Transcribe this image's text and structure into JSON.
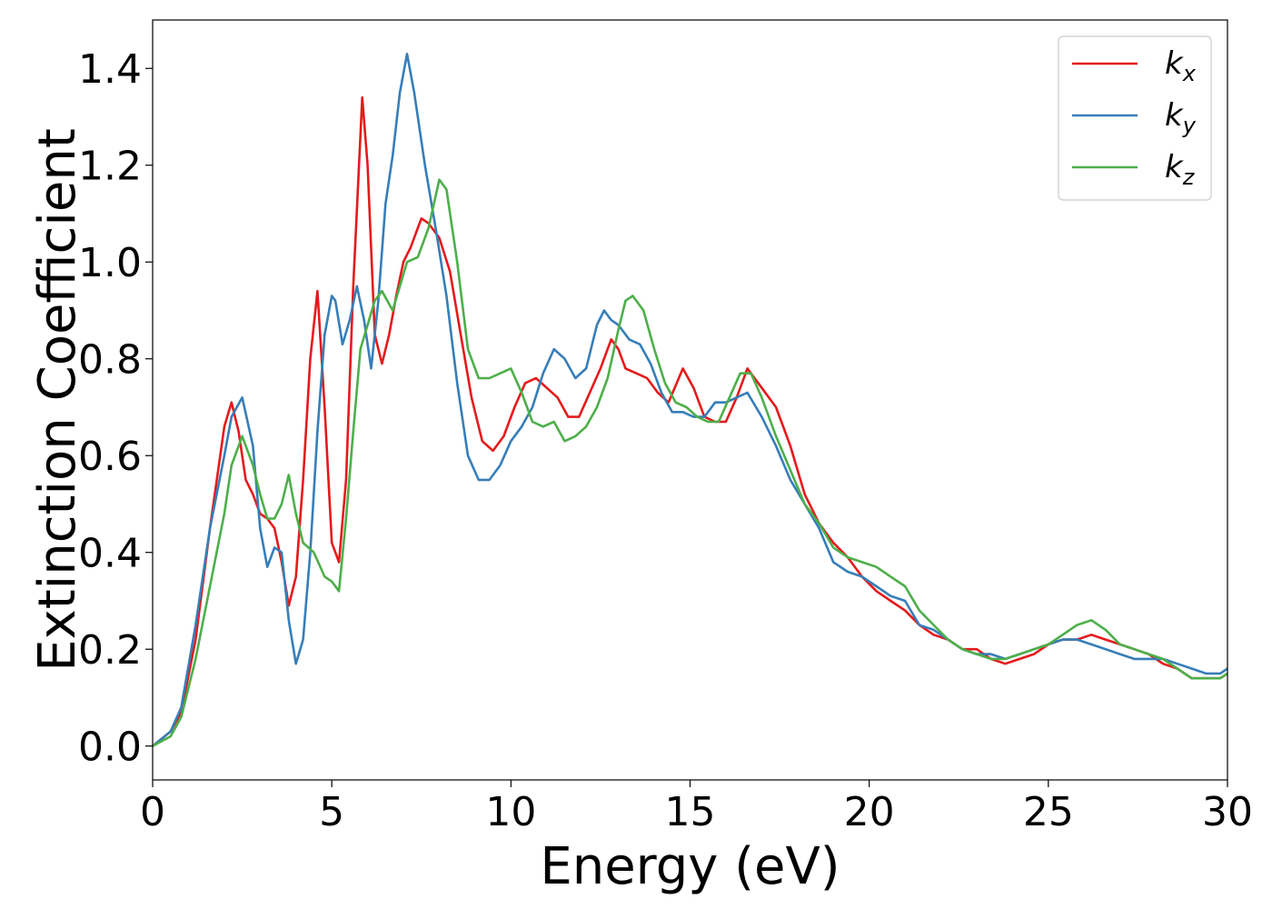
{
  "chart_data": {
    "type": "line",
    "xlabel": "Energy (eV)",
    "ylabel": "Extinction Coefficient",
    "xlim": [
      0,
      30
    ],
    "ylim": [
      -0.07,
      1.5
    ],
    "xticks": [
      0,
      5,
      10,
      15,
      20,
      25,
      30
    ],
    "xtick_labels": [
      "0",
      "5",
      "10",
      "15",
      "20",
      "25",
      "30"
    ],
    "yticks": [
      0.0,
      0.2,
      0.4,
      0.6,
      0.8,
      1.0,
      1.2,
      1.4
    ],
    "ytick_labels": [
      "0.0",
      "0.2",
      "0.4",
      "0.6",
      "0.8",
      "1.0",
      "1.2",
      "1.4"
    ],
    "grid": false,
    "legend_position": "top-right",
    "series": [
      {
        "name": "k",
        "subscript": "x",
        "color": "#e41a1c",
        "x": [
          0,
          0.5,
          0.8,
          1.2,
          1.6,
          2.0,
          2.2,
          2.4,
          2.6,
          2.8,
          3.0,
          3.2,
          3.4,
          3.6,
          3.8,
          4.0,
          4.2,
          4.4,
          4.6,
          4.8,
          5.0,
          5.2,
          5.4,
          5.6,
          5.85,
          6.0,
          6.2,
          6.4,
          6.6,
          6.8,
          7.0,
          7.2,
          7.5,
          7.7,
          8.0,
          8.3,
          8.6,
          8.9,
          9.2,
          9.5,
          9.8,
          10.1,
          10.4,
          10.7,
          11.0,
          11.3,
          11.6,
          11.9,
          12.2,
          12.5,
          12.8,
          13.0,
          13.2,
          13.5,
          13.8,
          14.1,
          14.4,
          14.8,
          15.1,
          15.4,
          15.7,
          16.0,
          16.3,
          16.6,
          17.0,
          17.4,
          17.8,
          18.2,
          18.6,
          19.0,
          19.4,
          19.8,
          20.2,
          20.6,
          21.0,
          21.4,
          21.8,
          22.2,
          22.6,
          23.0,
          23.4,
          23.8,
          24.2,
          24.6,
          25.0,
          25.4,
          25.8,
          26.2,
          26.6,
          27.0,
          27.4,
          27.8,
          28.2,
          28.6,
          29.0,
          29.4,
          29.8,
          30.0
        ],
        "y": [
          0.0,
          0.03,
          0.07,
          0.22,
          0.45,
          0.66,
          0.71,
          0.65,
          0.55,
          0.52,
          0.48,
          0.47,
          0.45,
          0.38,
          0.29,
          0.35,
          0.55,
          0.8,
          0.94,
          0.7,
          0.42,
          0.38,
          0.55,
          0.95,
          1.34,
          1.2,
          0.85,
          0.79,
          0.85,
          0.93,
          1.0,
          1.03,
          1.09,
          1.08,
          1.05,
          0.98,
          0.85,
          0.72,
          0.63,
          0.61,
          0.64,
          0.7,
          0.75,
          0.76,
          0.74,
          0.72,
          0.68,
          0.68,
          0.73,
          0.78,
          0.84,
          0.82,
          0.78,
          0.77,
          0.76,
          0.73,
          0.71,
          0.78,
          0.74,
          0.68,
          0.67,
          0.67,
          0.72,
          0.78,
          0.74,
          0.7,
          0.62,
          0.52,
          0.46,
          0.42,
          0.39,
          0.35,
          0.32,
          0.3,
          0.28,
          0.25,
          0.23,
          0.22,
          0.2,
          0.2,
          0.18,
          0.17,
          0.18,
          0.19,
          0.21,
          0.22,
          0.22,
          0.23,
          0.22,
          0.21,
          0.2,
          0.19,
          0.17,
          0.16,
          0.14,
          0.14,
          0.14,
          0.15
        ]
      },
      {
        "name": "k",
        "subscript": "y",
        "color": "#377eb8",
        "x": [
          0,
          0.5,
          0.8,
          1.2,
          1.6,
          2.0,
          2.2,
          2.5,
          2.8,
          3.0,
          3.2,
          3.4,
          3.6,
          3.8,
          4.0,
          4.2,
          4.4,
          4.6,
          4.8,
          5.0,
          5.1,
          5.3,
          5.5,
          5.7,
          5.9,
          6.1,
          6.3,
          6.5,
          6.7,
          6.9,
          7.1,
          7.3,
          7.6,
          7.9,
          8.2,
          8.5,
          8.8,
          9.1,
          9.4,
          9.7,
          10.0,
          10.3,
          10.6,
          10.9,
          11.2,
          11.5,
          11.8,
          12.1,
          12.4,
          12.6,
          12.8,
          13.0,
          13.3,
          13.6,
          13.9,
          14.2,
          14.5,
          14.8,
          15.1,
          15.4,
          15.7,
          16.0,
          16.3,
          16.6,
          17.0,
          17.4,
          17.8,
          18.2,
          18.6,
          19.0,
          19.4,
          19.8,
          20.2,
          20.6,
          21.0,
          21.4,
          21.8,
          22.2,
          22.6,
          23.0,
          23.4,
          23.8,
          24.2,
          24.6,
          25.0,
          25.4,
          25.8,
          26.2,
          26.6,
          27.0,
          27.4,
          27.8,
          28.2,
          28.6,
          29.0,
          29.4,
          29.8,
          30.0
        ],
        "y": [
          0.0,
          0.03,
          0.08,
          0.25,
          0.45,
          0.6,
          0.68,
          0.72,
          0.62,
          0.45,
          0.37,
          0.41,
          0.4,
          0.26,
          0.17,
          0.22,
          0.4,
          0.65,
          0.85,
          0.93,
          0.92,
          0.83,
          0.88,
          0.95,
          0.88,
          0.78,
          0.92,
          1.12,
          1.22,
          1.35,
          1.43,
          1.35,
          1.2,
          1.07,
          0.93,
          0.75,
          0.6,
          0.55,
          0.55,
          0.58,
          0.63,
          0.66,
          0.7,
          0.77,
          0.82,
          0.8,
          0.76,
          0.78,
          0.87,
          0.9,
          0.88,
          0.87,
          0.84,
          0.83,
          0.79,
          0.73,
          0.69,
          0.69,
          0.68,
          0.68,
          0.71,
          0.71,
          0.72,
          0.73,
          0.68,
          0.62,
          0.55,
          0.5,
          0.45,
          0.38,
          0.36,
          0.35,
          0.33,
          0.31,
          0.3,
          0.25,
          0.24,
          0.22,
          0.2,
          0.19,
          0.19,
          0.18,
          0.19,
          0.2,
          0.21,
          0.22,
          0.22,
          0.21,
          0.2,
          0.19,
          0.18,
          0.18,
          0.18,
          0.17,
          0.16,
          0.15,
          0.15,
          0.16
        ]
      },
      {
        "name": "k",
        "subscript": "z",
        "color": "#4daf4a",
        "x": [
          0,
          0.5,
          0.8,
          1.2,
          1.6,
          2.0,
          2.2,
          2.5,
          2.8,
          3.0,
          3.2,
          3.4,
          3.6,
          3.8,
          4.0,
          4.2,
          4.5,
          4.8,
          5.0,
          5.2,
          5.4,
          5.6,
          5.8,
          6.0,
          6.2,
          6.4,
          6.7,
          6.9,
          7.1,
          7.4,
          7.7,
          8.0,
          8.2,
          8.5,
          8.8,
          9.1,
          9.4,
          9.7,
          10.0,
          10.3,
          10.6,
          10.9,
          11.2,
          11.5,
          11.8,
          12.1,
          12.4,
          12.7,
          13.0,
          13.2,
          13.4,
          13.7,
          14.0,
          14.3,
          14.6,
          14.9,
          15.2,
          15.5,
          15.8,
          16.1,
          16.4,
          16.7,
          17.0,
          17.4,
          17.8,
          18.2,
          18.6,
          19.0,
          19.4,
          19.8,
          20.2,
          20.6,
          21.0,
          21.4,
          21.8,
          22.2,
          22.6,
          23.0,
          23.4,
          23.8,
          24.2,
          24.6,
          25.0,
          25.4,
          25.8,
          26.2,
          26.6,
          27.0,
          27.4,
          27.8,
          28.2,
          28.6,
          29.0,
          29.4,
          29.8,
          30.0
        ],
        "y": [
          0.0,
          0.02,
          0.06,
          0.18,
          0.33,
          0.48,
          0.58,
          0.64,
          0.58,
          0.52,
          0.47,
          0.47,
          0.5,
          0.56,
          0.48,
          0.42,
          0.4,
          0.35,
          0.34,
          0.32,
          0.47,
          0.65,
          0.82,
          0.87,
          0.92,
          0.94,
          0.9,
          0.95,
          1.0,
          1.01,
          1.07,
          1.17,
          1.15,
          1.0,
          0.82,
          0.76,
          0.76,
          0.77,
          0.78,
          0.73,
          0.67,
          0.66,
          0.67,
          0.63,
          0.64,
          0.66,
          0.7,
          0.76,
          0.86,
          0.92,
          0.93,
          0.9,
          0.82,
          0.75,
          0.71,
          0.7,
          0.68,
          0.67,
          0.67,
          0.72,
          0.77,
          0.77,
          0.72,
          0.64,
          0.57,
          0.5,
          0.46,
          0.41,
          0.39,
          0.38,
          0.37,
          0.35,
          0.33,
          0.28,
          0.25,
          0.22,
          0.2,
          0.19,
          0.18,
          0.18,
          0.19,
          0.2,
          0.21,
          0.23,
          0.25,
          0.26,
          0.24,
          0.21,
          0.2,
          0.19,
          0.18,
          0.16,
          0.14,
          0.14,
          0.14,
          0.15
        ]
      }
    ]
  }
}
